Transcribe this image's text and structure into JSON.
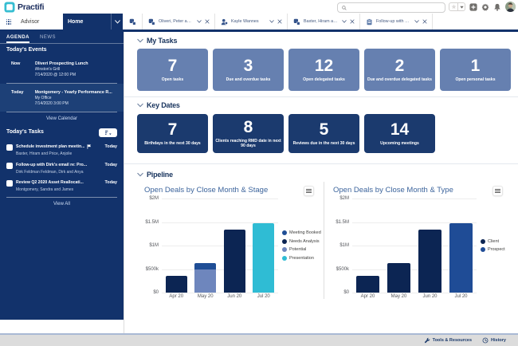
{
  "brand": {
    "name": "Practifi"
  },
  "theme": {
    "navy": "#12326b",
    "card_navy": "#1b3a6e",
    "card_slate": "#6680b0",
    "highlight_row": "#1d4077",
    "logo_teal": "#35bdd1",
    "footer_text": "#1b3a6b"
  },
  "topbar": {
    "search": {
      "value": "",
      "placeholder": ""
    },
    "icons": [
      "favorites-star",
      "favorites-caret",
      "global-actions-plus",
      "setup-gear",
      "notifications-bell",
      "user-avatar"
    ]
  },
  "nav": {
    "app_label": "Advisor",
    "home_tab": {
      "label": "Home"
    },
    "tabs": [
      {
        "label": "Oliveri, Peter and T...",
        "icon": "entity"
      },
      {
        "label": "Kayle Wannes",
        "icon": "person"
      },
      {
        "label": "Baxter, Hiram and ...",
        "icon": "entity"
      },
      {
        "label": "Follow-up with Dir...",
        "icon": "task"
      }
    ]
  },
  "sidebar": {
    "tabs": [
      {
        "label": "AGENDA",
        "active": true
      },
      {
        "label": "NEWS",
        "active": false
      }
    ],
    "events_heading": "Today's Events",
    "events": [
      {
        "time": "Now",
        "title": "Oliveri Prospecting Lunch",
        "location": "Winston's Grill",
        "datetime": "7/14/2020 @ 12:00 PM",
        "highlight": false
      },
      {
        "time": "Today",
        "title": "Montgomery - Yearly Performance R...",
        "location": "My Office",
        "datetime": "7/14/2020 3:00 PM",
        "highlight": true
      }
    ],
    "view_calendar_label": "View Calendar",
    "tasks_heading": "Today's Tasks",
    "tasks": [
      {
        "title": "Schedule investment plan meetin...",
        "flag": true,
        "due": "Today",
        "who": "Baxter, Hiram and Price, Anjolie"
      },
      {
        "title": "Follow-up with Dirk's email re: Pro...",
        "flag": false,
        "due": "Today",
        "who": "Dirk Feldman   Feldman, Dirk and Anya"
      },
      {
        "title": "Review Q2 2020 Asset Reallocati...",
        "flag": false,
        "due": "Today",
        "who": "Montgomery, Sandra and James"
      }
    ],
    "view_all_label": "View All"
  },
  "main": {
    "my_tasks": {
      "title": "My Tasks",
      "cards": [
        {
          "value": "7",
          "label": "Open tasks"
        },
        {
          "value": "3",
          "label": "Due and overdue tasks"
        },
        {
          "value": "12",
          "label": "Open delegated tasks"
        },
        {
          "value": "2",
          "label": "Due and overdue delegated tasks"
        },
        {
          "value": "1",
          "label": "Open personal tasks"
        }
      ]
    },
    "key_dates": {
      "title": "Key Dates",
      "cards": [
        {
          "value": "7",
          "label": "Birthdays in the next 30 days"
        },
        {
          "value": "8",
          "label": "Clients reaching RMD date in next 90 days"
        },
        {
          "value": "5",
          "label": "Reviews due in the next 30 days"
        },
        {
          "value": "14",
          "label": "Upcoming meetings"
        }
      ]
    },
    "pipeline": {
      "title": "Pipeline"
    }
  },
  "chart_data": [
    {
      "type": "bar",
      "stacked": true,
      "title": "Open Deals by Close Month & Stage",
      "categories": [
        "Apr 20",
        "May 20",
        "Jun 20",
        "Jul 20"
      ],
      "series": [
        {
          "name": "Meeting Booked",
          "color": "#1f4e96",
          "values": [
            0,
            130000,
            0,
            0
          ]
        },
        {
          "name": "Needs Analysis",
          "color": "#0c2553",
          "values": [
            350000,
            0,
            1340000,
            0
          ]
        },
        {
          "name": "Potential",
          "color": "#6e86bd",
          "values": [
            0,
            500000,
            0,
            0
          ]
        },
        {
          "name": "Presentation",
          "color": "#2fbcd4",
          "values": [
            0,
            0,
            0,
            1480000
          ]
        }
      ],
      "y_ticks": [
        "$0",
        "$500k",
        "$1M",
        "$1.5M",
        "$2M"
      ],
      "y_max": 2000000,
      "grid": true,
      "legend_position": "right"
    },
    {
      "type": "bar",
      "stacked": true,
      "title": "Open Deals by Close Month & Type",
      "categories": [
        "Apr 20",
        "May 20",
        "Jun 20",
        "Jul 20"
      ],
      "series": [
        {
          "name": "Client",
          "color": "#0c2553",
          "values": [
            350000,
            630000,
            1340000,
            0
          ]
        },
        {
          "name": "Prospect",
          "color": "#1f4c96",
          "values": [
            0,
            0,
            0,
            1480000
          ]
        }
      ],
      "y_ticks": [
        "$0",
        "$500k",
        "$1M",
        "$1.5M",
        "$2M"
      ],
      "y_max": 2000000,
      "grid": true,
      "legend_position": "right"
    }
  ],
  "footer": {
    "items": [
      {
        "label": "Tools & Resources",
        "icon": "wrench"
      },
      {
        "label": "History",
        "icon": "history-clock"
      }
    ]
  }
}
